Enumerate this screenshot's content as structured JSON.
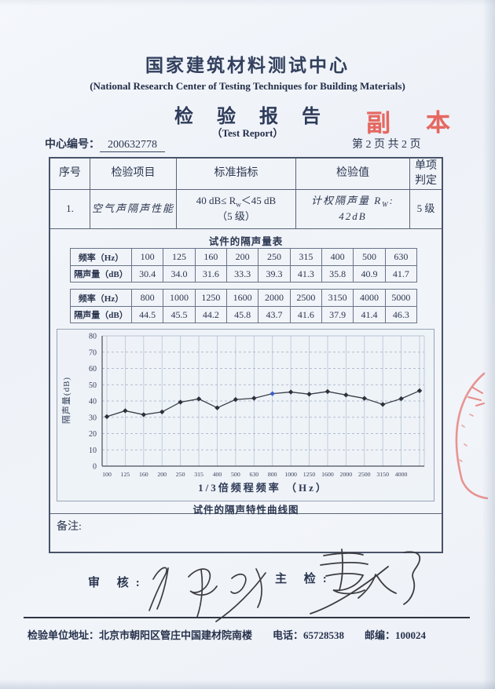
{
  "header": {
    "org_cn": "国家建筑材料测试中心",
    "org_en": "(National Research Center of Testing Techniques for Building Materials)",
    "report_title": "检 验 报 告",
    "report_title_en": "（Test Report）",
    "copy_stamp": "副本",
    "center_no_label": "中心编号：",
    "center_no": "200632778",
    "page_info": "第 2 页 共 2 页"
  },
  "result_table": {
    "headers": [
      "序号",
      "检验项目",
      "标准指标",
      "检验值",
      "单项判定"
    ],
    "row": {
      "no": "1.",
      "item": "空气声隔声性能",
      "standard_prefix": "40 dB≤ R",
      "standard_sub": "w",
      "standard_suffix": "＜45 dB",
      "standard_line2": "（5 级）",
      "value_prefix": "计权隔声量 R",
      "value_sub": "W",
      "value_suffix": ": 42dB",
      "judgement": "5 级"
    }
  },
  "data_table": {
    "title": "试件的隔声量表",
    "row_labels": {
      "freq": "频率（Hz）",
      "db": "隔声量（dB）"
    },
    "table1": {
      "freqs": [
        "100",
        "125",
        "160",
        "200",
        "250",
        "315",
        "400",
        "500",
        "630"
      ],
      "values": [
        "30.4",
        "34.0",
        "31.6",
        "33.3",
        "39.3",
        "41.3",
        "35.8",
        "40.9",
        "41.7"
      ]
    },
    "table2": {
      "freqs": [
        "800",
        "1000",
        "1250",
        "1600",
        "2000",
        "2500",
        "3150",
        "4000",
        "5000"
      ],
      "values": [
        "44.5",
        "45.5",
        "44.2",
        "45.8",
        "43.7",
        "41.6",
        "37.9",
        "41.4",
        "46.3"
      ]
    }
  },
  "chart_data": {
    "type": "line",
    "title": "试件的隔声特性曲线图",
    "xlabel": "1/3倍频程频率 （Hz）",
    "ylabel": "隔声量(dB)",
    "x": [
      100,
      125,
      160,
      200,
      250,
      315,
      400,
      500,
      630,
      800,
      1000,
      1250,
      1600,
      2000,
      2500,
      3150,
      4000,
      5000
    ],
    "values": [
      30.4,
      34.0,
      31.6,
      33.3,
      39.3,
      41.3,
      35.8,
      40.9,
      41.7,
      44.5,
      45.5,
      44.2,
      45.8,
      43.7,
      41.6,
      37.9,
      41.4,
      46.3
    ],
    "x_tick_labels": [
      "100",
      "125",
      "160",
      "200",
      "250",
      "315",
      "400",
      "500",
      "630",
      "800",
      "1000",
      "1250",
      "1600",
      "2000",
      "2500",
      "3150",
      "4000"
    ],
    "y_ticks": [
      0,
      10,
      20,
      30,
      40,
      50,
      60,
      70,
      80
    ],
    "ylim": [
      0,
      80
    ],
    "grid": true,
    "legend": "none",
    "line_color": "#3a3f49",
    "marker_color": "#2c3039",
    "highlight_index": 9,
    "highlight_color": "#3c5ec8",
    "grid_color": "#b7c3d3",
    "dash_color": "#9fabbd"
  },
  "remarks_label": "备注:",
  "signatures": {
    "review_label": "审 核:",
    "chief_label": "主 检:"
  },
  "footer": {
    "address": "检验单位地址：北京市朝阳区管庄中国建材院南楼",
    "phone": "电话：65728538",
    "zip": "邮编：100024"
  }
}
